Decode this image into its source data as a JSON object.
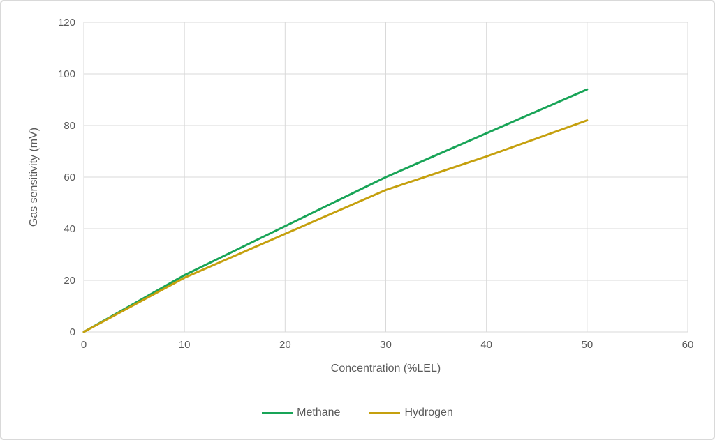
{
  "chart_data": {
    "type": "line",
    "title": "",
    "xlabel": "Concentration (%LEL)",
    "ylabel": "Gas sensitivity (mV)",
    "x": [
      0,
      10,
      20,
      30,
      40,
      50
    ],
    "series": [
      {
        "name": "Methane",
        "color": "#18a457",
        "values": [
          0,
          22,
          41,
          60,
          77,
          94
        ]
      },
      {
        "name": "Hydrogen",
        "color": "#c5a00e",
        "values": [
          0,
          21,
          38,
          55,
          68,
          82
        ]
      }
    ],
    "xlim": [
      0,
      60
    ],
    "ylim": [
      0,
      120
    ],
    "xticks": [
      0,
      10,
      20,
      30,
      40,
      50,
      60
    ],
    "yticks": [
      0,
      20,
      40,
      60,
      80,
      100,
      120
    ],
    "grid": true,
    "grid_color": "#d9d9d9",
    "axis_text_color": "#595959",
    "line_width": 3,
    "legend_position": "bottom"
  }
}
